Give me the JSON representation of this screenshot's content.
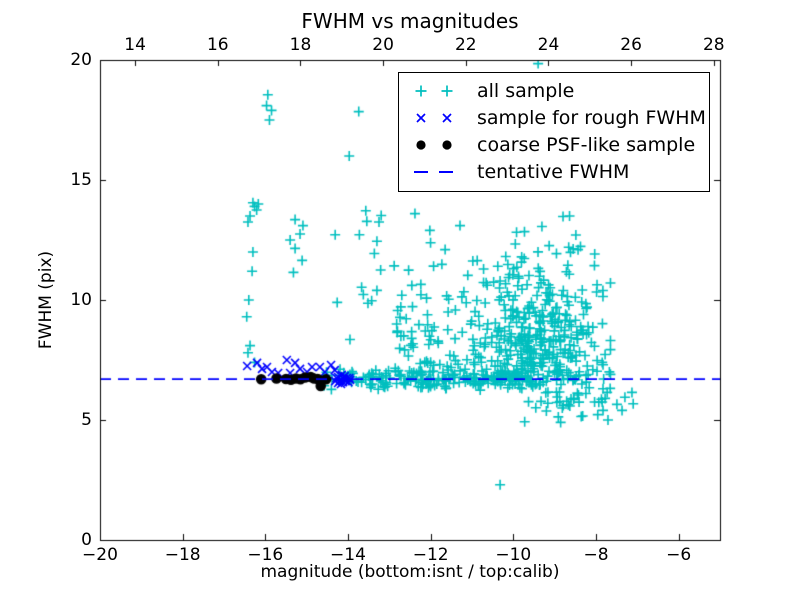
{
  "title": "FWHM vs magnitudes",
  "axis": {
    "xlabel": "magnitude (bottom:isnt / top:calib)",
    "ylabel": "FWHM (pix)",
    "xlim": [
      -20,
      -5
    ],
    "ylim": [
      0,
      20
    ],
    "x_bottom_ticks": [
      {
        "v": -20,
        "label": "−20"
      },
      {
        "v": -18,
        "label": "−18"
      },
      {
        "v": -16,
        "label": "−16"
      },
      {
        "v": -14,
        "label": "−14"
      },
      {
        "v": -12,
        "label": "−12"
      },
      {
        "v": -10,
        "label": "−10"
      },
      {
        "v": -8,
        "label": "−8"
      },
      {
        "v": -6,
        "label": "−6"
      }
    ],
    "x_top_ticks": [
      {
        "v": 14,
        "label": "14"
      },
      {
        "v": 16,
        "label": "16"
      },
      {
        "v": 18,
        "label": "18"
      },
      {
        "v": 20,
        "label": "20"
      },
      {
        "v": 22,
        "label": "22"
      },
      {
        "v": 24,
        "label": "24"
      },
      {
        "v": 26,
        "label": "26"
      },
      {
        "v": 28,
        "label": "28"
      }
    ],
    "x_top_offset": 33.15,
    "y_ticks": [
      {
        "v": 0,
        "label": "0"
      },
      {
        "v": 5,
        "label": "5"
      },
      {
        "v": 10,
        "label": "10"
      },
      {
        "v": 15,
        "label": "15"
      },
      {
        "v": 20,
        "label": "20"
      }
    ]
  },
  "colors": {
    "all_sample": "#00bfbf",
    "rough_fwhm": "#0000ff",
    "psf_sample": "#000000",
    "tentative_fwhm": "#0000ff",
    "axes": "#000000"
  },
  "legend": {
    "entries": [
      {
        "label": "all sample",
        "marker": "plus",
        "color_key": "all_sample"
      },
      {
        "label": "sample for rough FWHM",
        "marker": "x",
        "color_key": "rough_fwhm"
      },
      {
        "label": "coarse PSF-like sample",
        "marker": "dot",
        "color_key": "psf_sample"
      },
      {
        "label": "tentative FWHM",
        "marker": "dash",
        "color_key": "tentative_fwhm"
      }
    ]
  },
  "chart_data": {
    "type": "scatter",
    "title": "FWHM vs magnitudes",
    "xlabel": "magnitude (bottom:isnt / top:calib)",
    "ylabel": "FWHM (pix)",
    "xlim": [
      -20,
      -5
    ],
    "ylim": [
      0,
      20
    ],
    "grid": false,
    "legend_position": "upper right",
    "top_axis_relation": "calib = isnt + 33.15",
    "tentative_fwhm": 6.7,
    "seed": 20,
    "series": {
      "all_sample": {
        "name": "all sample",
        "marker": "plus",
        "color_key": "all_sample",
        "points": [
          [
            -16.45,
            9.3
          ],
          [
            -16.4,
            10.0
          ],
          [
            -16.32,
            11.2
          ],
          [
            -16.3,
            12.0
          ],
          [
            -16.42,
            13.25
          ],
          [
            -16.37,
            13.5
          ],
          [
            -16.26,
            13.9
          ],
          [
            -16.21,
            13.75
          ],
          [
            -16.17,
            14.0
          ],
          [
            -16.3,
            14.05
          ],
          [
            -16.37,
            8.1
          ],
          [
            -16.42,
            7.8
          ],
          [
            -16.26,
            7.4
          ],
          [
            -15.94,
            18.55
          ],
          [
            -15.97,
            18.1
          ],
          [
            -15.85,
            17.9
          ],
          [
            -15.9,
            17.5
          ],
          [
            -15.28,
            13.35
          ],
          [
            -15.09,
            13.1
          ],
          [
            -15.16,
            12.75
          ],
          [
            -15.4,
            12.5
          ],
          [
            -15.28,
            12.15
          ],
          [
            -15.11,
            11.65
          ],
          [
            -15.32,
            11.15
          ],
          [
            -13.25,
            13.25
          ],
          [
            -13.3,
            12.45
          ],
          [
            -13.21,
            11.25
          ],
          [
            -13.3,
            10.4
          ],
          [
            -13.97,
            16.0
          ],
          [
            -13.74,
            17.85
          ],
          [
            -9.4,
            19.85
          ],
          [
            -10.32,
            2.3
          ],
          [
            -12.81,
            8.65
          ],
          [
            -12.38,
            13.6
          ],
          [
            -12.02,
            12.9
          ],
          [
            -11.65,
            12.1
          ],
          [
            -11.29,
            13.1
          ],
          [
            -7.85,
            7.4
          ],
          [
            -7.83,
            6.3
          ],
          [
            -7.73,
            6.15
          ],
          [
            -7.85,
            5.75
          ],
          [
            -7.78,
            5.9
          ],
          [
            -7.3,
            5.95
          ],
          [
            -7.13,
            6.15
          ],
          [
            -7.83,
            5.4
          ],
          [
            -7.37,
            5.4
          ],
          [
            -7.71,
            5.0
          ]
        ],
        "clusters": [
          {
            "desc": "tight band along tentative FWHM",
            "n": 170,
            "x": {
              "dist": "uniform",
              "min": -14.6,
              "max": -9.7
            },
            "y": {
              "dist": "normal",
              "mu": 6.7,
              "sigma": 0.2
            }
          },
          {
            "desc": "dense faint-end funnel cloud",
            "n": 400,
            "x": {
              "dist": "normal",
              "mu": -9.4,
              "sigma": 0.75,
              "min": -11.6,
              "max": -7.65
            },
            "y": {
              "dist": "halfup",
              "base": 6.45,
              "sigma": 2.6,
              "max": 16.8
            }
          },
          {
            "desc": "left wing of cloud",
            "n": 80,
            "x": {
              "dist": "uniform",
              "min": -12.9,
              "max": -10.6
            },
            "y": {
              "dist": "halfup",
              "base": 6.6,
              "sigma": 2.2,
              "max": 14.5
            }
          },
          {
            "desc": "below-line stragglers",
            "n": 40,
            "x": {
              "dist": "normal",
              "mu": -8.7,
              "sigma": 0.6,
              "min": -10.0,
              "max": -7.1
            },
            "y": {
              "dist": "halfdown",
              "base": 6.4,
              "sigma": 0.7,
              "min": 4.9
            }
          },
          {
            "desc": "high outliers above cloud",
            "n": 12,
            "x": {
              "dist": "normal",
              "mu": -9.55,
              "sigma": 0.45
            },
            "y": {
              "dist": "uniform",
              "min": 14.8,
              "max": 16.9
            }
          },
          {
            "desc": "sparse mid-bright scatter",
            "n": 22,
            "x": {
              "dist": "uniform",
              "min": -14.35,
              "max": -11.55
            },
            "y": {
              "dist": "uniform",
              "min": 8.2,
              "max": 13.8
            }
          }
        ]
      },
      "rough_fwhm": {
        "name": "sample for rough FWHM",
        "marker": "x",
        "color_key": "rough_fwhm",
        "points": [
          [
            -16.44,
            7.25
          ],
          [
            -16.2,
            7.38
          ],
          [
            -16.08,
            7.13
          ],
          [
            -15.96,
            7.21
          ],
          [
            -15.84,
            7.0
          ],
          [
            -15.69,
            6.96
          ],
          [
            -15.48,
            7.5
          ],
          [
            -15.4,
            6.96
          ],
          [
            -15.28,
            7.38
          ],
          [
            -15.16,
            7.13
          ],
          [
            -14.99,
            7.0
          ],
          [
            -14.87,
            7.21
          ],
          [
            -14.68,
            7.21
          ],
          [
            -14.56,
            7.0
          ],
          [
            -14.41,
            7.29
          ],
          [
            -14.32,
            7.08
          ],
          [
            -14.24,
            6.79
          ],
          [
            -14.15,
            6.88
          ],
          [
            -14.1,
            6.71
          ],
          [
            -14.03,
            6.75
          ],
          [
            -13.95,
            6.67
          ],
          [
            -14.28,
            6.75
          ],
          [
            -14.2,
            6.62
          ],
          [
            -14.12,
            6.58
          ],
          [
            -14.06,
            6.62
          ],
          [
            -13.99,
            6.58
          ],
          [
            -14.17,
            6.5
          ],
          [
            -14.24,
            6.54
          ],
          [
            -14.31,
            6.62
          ],
          [
            -14.08,
            6.83
          ],
          [
            -13.97,
            6.75
          ]
        ]
      },
      "psf_sample": {
        "name": "coarse PSF-like sample",
        "marker": "dot",
        "color_key": "psf_sample",
        "points": [
          [
            -16.1,
            6.7
          ],
          [
            -15.73,
            6.73
          ],
          [
            -15.5,
            6.71
          ],
          [
            -15.38,
            6.68
          ],
          [
            -15.26,
            6.73
          ],
          [
            -15.15,
            6.7
          ],
          [
            -15.04,
            6.77
          ],
          [
            -14.9,
            6.79
          ],
          [
            -14.82,
            6.73
          ],
          [
            -14.73,
            6.71
          ],
          [
            -14.66,
            6.42
          ],
          [
            -14.53,
            6.7
          ]
        ]
      },
      "tentative_fwhm": {
        "name": "tentative FWHM",
        "type": "hline",
        "y": 6.7,
        "color_key": "tentative_fwhm",
        "style": "dashed"
      }
    }
  }
}
